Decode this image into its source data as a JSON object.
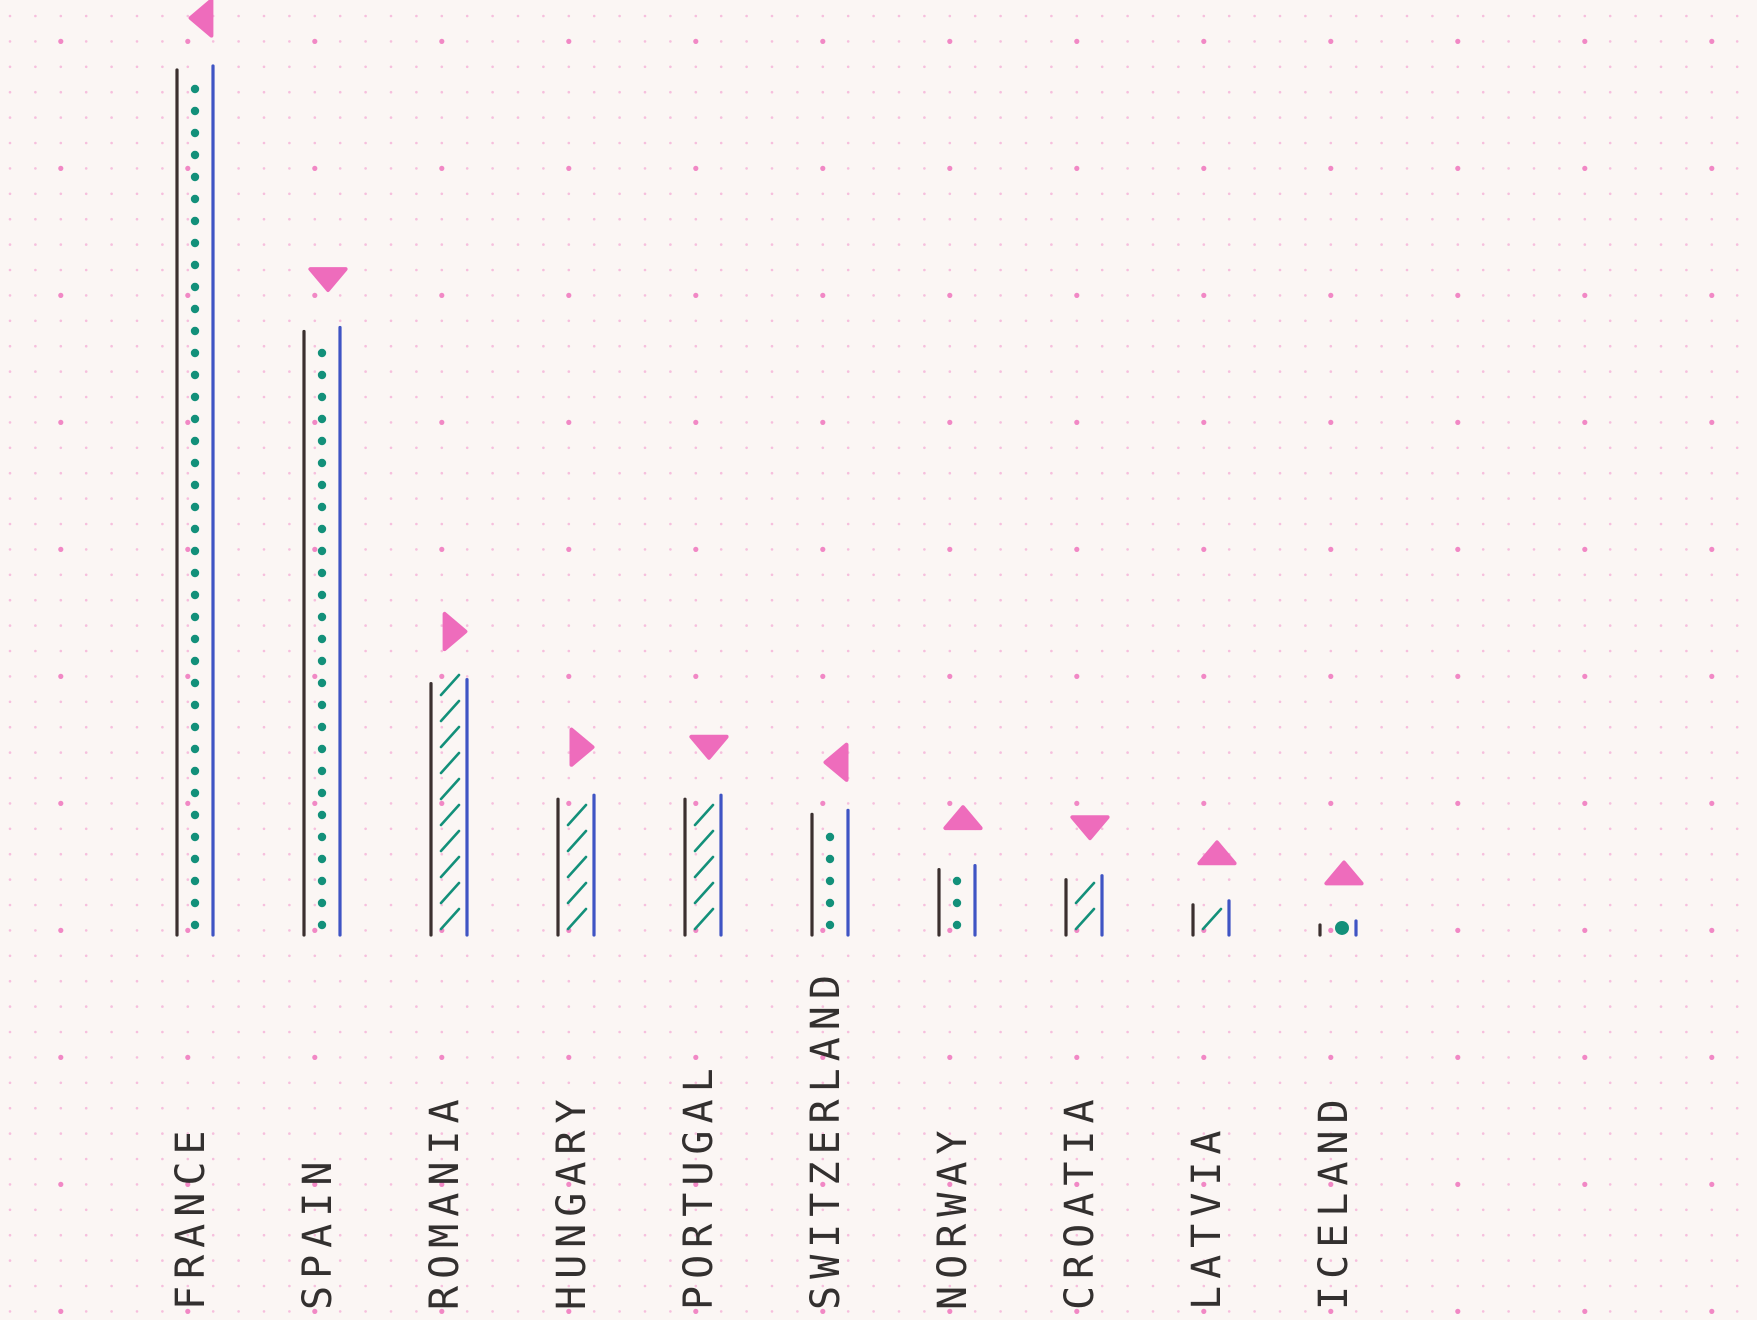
{
  "chart_data": {
    "type": "bar",
    "title": "",
    "xlabel": "",
    "ylabel": "",
    "categories": [
      "FRANCE",
      "SPAIN",
      "ROMANIA",
      "HUNGARY",
      "PORTUGAL",
      "SWITZERLAND",
      "NORWAY",
      "CROATIA",
      "LATVIA",
      "ICELAND"
    ],
    "values": [
      860,
      600,
      250,
      135,
      135,
      120,
      65,
      55,
      30,
      10
    ],
    "ylim": [
      0,
      900
    ],
    "grid": true,
    "grid_style": "dot-grid",
    "legend": "none",
    "fill_patterns": [
      "dots",
      "dots",
      "hatch",
      "hatch",
      "hatch",
      "dots",
      "dots",
      "hatch",
      "hatch",
      "dots"
    ],
    "marker_directions": [
      "left",
      "down",
      "right",
      "right",
      "down",
      "left",
      "up",
      "down",
      "up",
      "up"
    ],
    "colors": {
      "background": "#fbf6f4",
      "grid_dot": "#f07cc0",
      "bar_left_edge": "#3b302f",
      "bar_right_edge": "#3f54c4",
      "bar_fill": "#13907a",
      "marker": "#ee6cbc",
      "label": "#33302f"
    }
  }
}
